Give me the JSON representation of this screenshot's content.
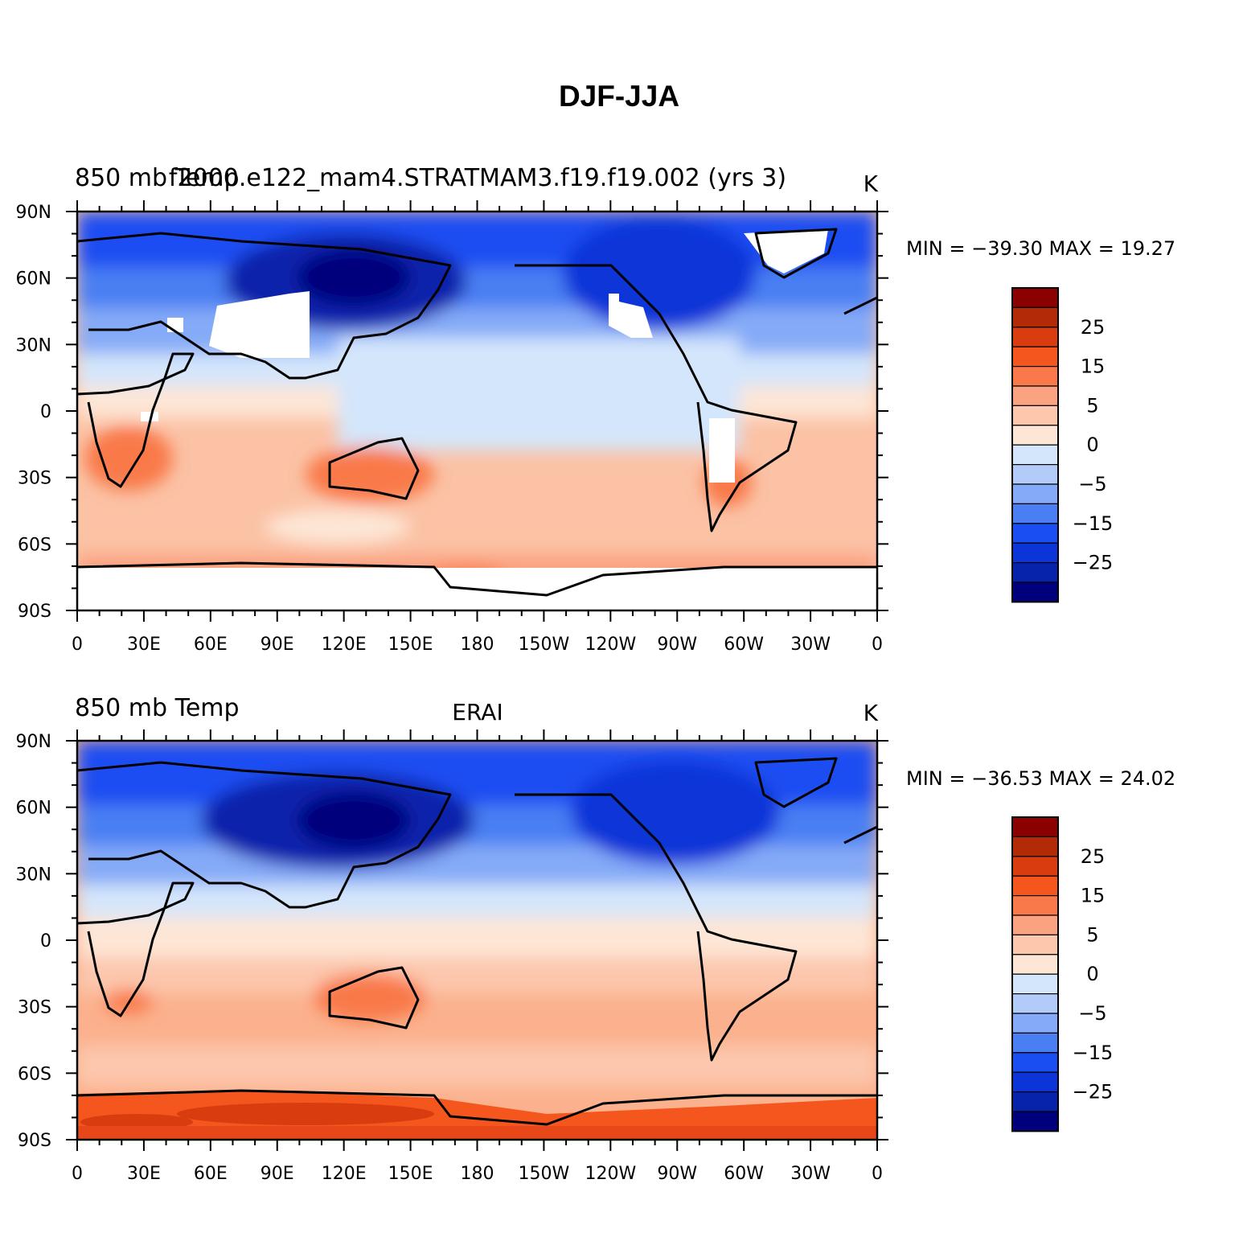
{
  "figure_title": "DJF-JJA",
  "panels": [
    {
      "left_title": "850 mb Temp",
      "center_title": "f2000.e122_mam4.STRATMAM3.f19.f19.002 (yrs 3)",
      "units": "K",
      "stats": "MIN = −39.30 MAX =   19.27",
      "map": {
        "lon_ticks": [
          "0",
          "30E",
          "60E",
          "90E",
          "120E",
          "150E",
          "180",
          "150W",
          "120W",
          "90W",
          "60W",
          "30W",
          "0"
        ],
        "lat_ticks": [
          "90N",
          "60N",
          "30N",
          "0",
          "30S",
          "60S",
          "90S"
        ],
        "has_missing_data_white": true
      }
    },
    {
      "left_title": "850 mb Temp",
      "center_title": "ERAI",
      "units": "K",
      "stats": "MIN = −36.53 MAX =   24.02",
      "map": {
        "lon_ticks": [
          "0",
          "30E",
          "60E",
          "90E",
          "120E",
          "150E",
          "180",
          "150W",
          "120W",
          "90W",
          "60W",
          "30W",
          "0"
        ],
        "lat_ticks": [
          "90N",
          "60N",
          "30N",
          "0",
          "30S",
          "60S",
          "90S"
        ],
        "has_missing_data_white": false
      }
    }
  ],
  "colorbar": {
    "colors": [
      "#8b0000",
      "#b22a06",
      "#d93c0f",
      "#f5561d",
      "#f9794a",
      "#fba281",
      "#fcc7ad",
      "#fde6d6",
      "#d4e6fb",
      "#b3cbf9",
      "#85aaf7",
      "#4a7ff3",
      "#1b4ef2",
      "#0b35d8",
      "#0722ab",
      "#00007c"
    ],
    "tick_labels": [
      "25",
      "15",
      "5",
      "0",
      "−5",
      "−15",
      "−25"
    ]
  }
}
